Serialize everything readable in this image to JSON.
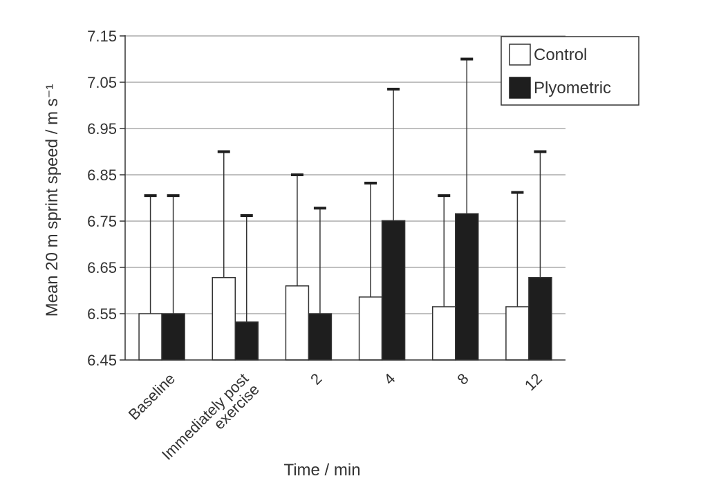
{
  "chart_data": {
    "type": "bar",
    "title": "",
    "xlabel": "Time / min",
    "ylabel": "Mean 20 m sprint speed / m s⁻¹",
    "ylim": [
      6.45,
      7.15
    ],
    "yticks": [
      "6.45",
      "6.55",
      "6.65",
      "6.75",
      "6.85",
      "6.95",
      "7.05",
      "7.15"
    ],
    "categories": [
      [
        "Baseline"
      ],
      [
        "Immediately post",
        "exercise"
      ],
      [
        "2"
      ],
      [
        "4"
      ],
      [
        "8"
      ],
      [
        "12"
      ]
    ],
    "series": [
      {
        "name": "Control",
        "color": "#ffffff",
        "values": [
          6.55,
          6.628,
          6.61,
          6.586,
          6.565,
          6.565
        ],
        "error_upper": [
          6.805,
          6.9,
          6.85,
          6.832,
          6.805,
          6.812
        ]
      },
      {
        "name": "Plyometric",
        "color": "#1e1e1e",
        "values": [
          6.55,
          6.532,
          6.55,
          6.751,
          6.766,
          6.628
        ],
        "error_upper": [
          6.805,
          6.762,
          6.778,
          7.035,
          7.1,
          6.9
        ]
      }
    ],
    "grid": "horizontal",
    "legend_position": "top-right"
  }
}
